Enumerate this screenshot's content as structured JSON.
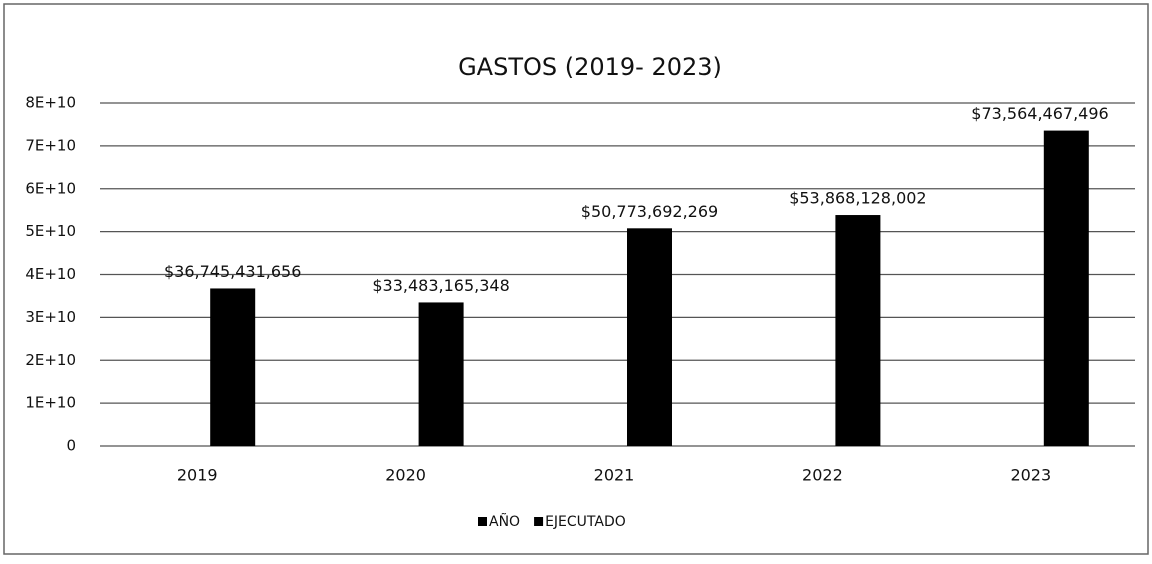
{
  "chart_data": {
    "type": "bar",
    "title": "GASTOS (2019- 2023)",
    "categories": [
      "2019",
      "2020",
      "2021",
      "2022",
      "2023"
    ],
    "series": [
      {
        "name": "AÑO",
        "color": "#000000",
        "values": [
          2019,
          2020,
          2021,
          2022,
          2023
        ]
      },
      {
        "name": "EJECUTADO",
        "color": "#000000",
        "values": [
          36745431656,
          33483165348,
          50773692269,
          53868128002,
          73564467496
        ],
        "value_labels": [
          "$36,745,431,656",
          "$33,483,165,348",
          "$50,773,692,269",
          "$53,868,128,002",
          "$73,564,467,496"
        ]
      }
    ],
    "ylim": [
      0,
      80000000000
    ],
    "yticks": [
      0,
      {
        "value": 10000000000,
        "label": "1E+10"
      },
      {
        "value": 20000000000,
        "label": "2E+10"
      },
      {
        "value": 30000000000,
        "label": "3E+10"
      },
      {
        "value": 40000000000,
        "label": "4E+10"
      },
      {
        "value": 50000000000,
        "label": "5E+10"
      },
      {
        "value": 60000000000,
        "label": "6E+10"
      },
      {
        "value": 70000000000,
        "label": "7E+10"
      },
      {
        "value": 80000000000,
        "label": "8E+10"
      }
    ],
    "grid": true,
    "legend": "bottom"
  }
}
